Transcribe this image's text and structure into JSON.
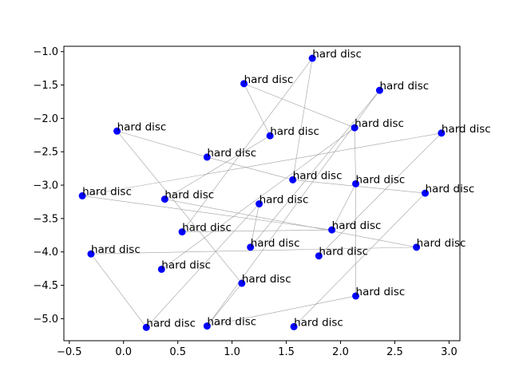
{
  "chart_data": {
    "type": "scatter",
    "title": "",
    "xlabel": "",
    "ylabel": "",
    "xlim": [
      -0.55,
      3.1
    ],
    "ylim": [
      -5.33,
      -0.92
    ],
    "xticks": [
      -0.5,
      0.0,
      0.5,
      1.0,
      1.5,
      2.0,
      2.5,
      3.0
    ],
    "xtick_labels": [
      "−0.5",
      "0.0",
      "0.5",
      "1.0",
      "1.5",
      "2.0",
      "2.5",
      "3.0"
    ],
    "yticks": [
      -1.0,
      -1.5,
      -2.0,
      -2.5,
      -3.0,
      -3.5,
      -4.0,
      -4.5,
      -5.0
    ],
    "ytick_labels": [
      "−1.0",
      "−1.5",
      "−2.0",
      "−2.5",
      "−3.0",
      "−3.5",
      "−4.0",
      "−4.5",
      "−5.0"
    ],
    "grid": false,
    "point_color": "#0000ff",
    "edge_color": "#a0a0a0",
    "points": [
      {
        "x": 1.74,
        "y": -1.1,
        "label": "hard disc"
      },
      {
        "x": 1.11,
        "y": -1.48,
        "label": "hard disc"
      },
      {
        "x": 2.36,
        "y": -1.58,
        "label": "hard disc"
      },
      {
        "x": 2.13,
        "y": -2.14,
        "label": "hard disc"
      },
      {
        "x": -0.06,
        "y": -2.19,
        "label": "hard disc"
      },
      {
        "x": 2.93,
        "y": -2.22,
        "label": "hard disc"
      },
      {
        "x": 1.35,
        "y": -2.26,
        "label": "hard disc"
      },
      {
        "x": 0.77,
        "y": -2.58,
        "label": "hard disc"
      },
      {
        "x": 1.56,
        "y": -2.92,
        "label": "hard disc"
      },
      {
        "x": 2.14,
        "y": -2.98,
        "label": "hard disc"
      },
      {
        "x": 2.78,
        "y": -3.12,
        "label": "hard disc"
      },
      {
        "x": -0.38,
        "y": -3.16,
        "label": "hard disc"
      },
      {
        "x": 0.38,
        "y": -3.21,
        "label": "hard disc"
      },
      {
        "x": 1.25,
        "y": -3.28,
        "label": "hard disc"
      },
      {
        "x": 0.54,
        "y": -3.7,
        "label": "hard disc"
      },
      {
        "x": 1.92,
        "y": -3.67,
        "label": "hard disc"
      },
      {
        "x": 2.7,
        "y": -3.93,
        "label": "hard disc"
      },
      {
        "x": 1.17,
        "y": -3.93,
        "label": "hard disc"
      },
      {
        "x": -0.3,
        "y": -4.03,
        "label": "hard disc"
      },
      {
        "x": 1.8,
        "y": -4.06,
        "label": "hard disc"
      },
      {
        "x": 0.35,
        "y": -4.26,
        "label": "hard disc"
      },
      {
        "x": 1.09,
        "y": -4.47,
        "label": "hard disc"
      },
      {
        "x": 2.14,
        "y": -4.66,
        "label": "hard disc"
      },
      {
        "x": 0.21,
        "y": -5.13,
        "label": "hard disc"
      },
      {
        "x": 0.77,
        "y": -5.11,
        "label": "hard disc"
      },
      {
        "x": 1.57,
        "y": -5.12,
        "label": "hard disc"
      }
    ],
    "edges": [
      [
        0,
        8
      ],
      [
        0,
        14
      ],
      [
        1,
        6
      ],
      [
        1,
        3
      ],
      [
        2,
        17
      ],
      [
        2,
        24
      ],
      [
        3,
        20
      ],
      [
        3,
        9
      ],
      [
        4,
        7
      ],
      [
        4,
        21
      ],
      [
        5,
        11
      ],
      [
        5,
        19
      ],
      [
        6,
        12
      ],
      [
        7,
        8
      ],
      [
        8,
        10
      ],
      [
        9,
        15
      ],
      [
        9,
        22
      ],
      [
        10,
        25
      ],
      [
        11,
        15
      ],
      [
        12,
        16
      ],
      [
        13,
        17
      ],
      [
        13,
        23
      ],
      [
        14,
        15
      ],
      [
        18,
        23
      ],
      [
        18,
        16
      ],
      [
        21,
        24
      ],
      [
        22,
        24
      ]
    ]
  }
}
